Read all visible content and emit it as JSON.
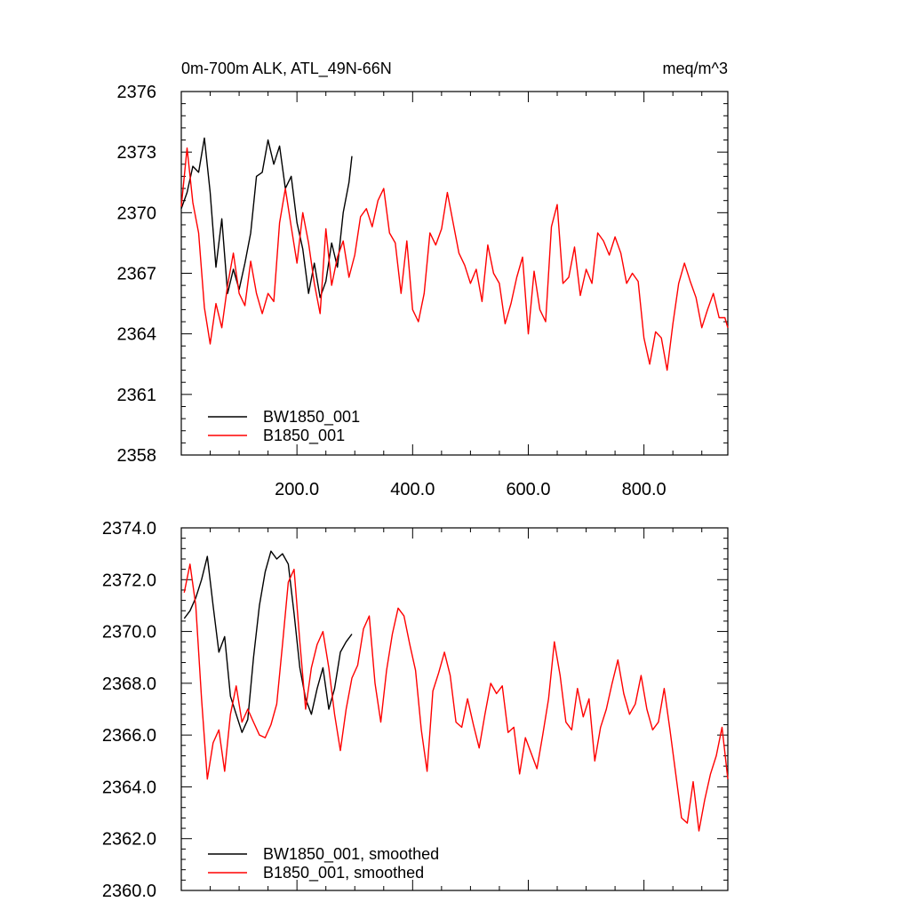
{
  "chart_data": [
    {
      "type": "line",
      "panel": "top",
      "title": "0m-700m ALK, ATL_49N-66N",
      "units_label": "meq/m^3",
      "xlim": [
        0,
        945
      ],
      "ylim": [
        2358,
        2376
      ],
      "x_ticks": [
        200,
        400,
        600,
        800
      ],
      "x_tick_labels": [
        "200.0",
        "400.0",
        "600.0",
        "800.0"
      ],
      "y_ticks": [
        2358,
        2361,
        2364,
        2367,
        2370,
        2373,
        2376
      ],
      "y_tick_labels": [
        "2358",
        "2361",
        "2364",
        "2367",
        "2370",
        "2373",
        "2376"
      ],
      "legend_position": "bottom-left",
      "series": [
        {
          "name": "BW1850_001",
          "color": "#000000",
          "x": [
            0,
            10,
            20,
            30,
            40,
            50,
            60,
            70,
            80,
            90,
            100,
            110,
            120,
            130,
            140,
            150,
            160,
            170,
            180,
            190,
            200,
            210,
            220,
            230,
            240,
            250,
            260,
            270,
            280,
            290,
            295
          ],
          "values": [
            2370.2,
            2371.0,
            2372.3,
            2372.0,
            2373.7,
            2371.0,
            2367.3,
            2369.7,
            2366.0,
            2367.2,
            2366.2,
            2367.5,
            2369.0,
            2371.8,
            2372.0,
            2373.6,
            2372.4,
            2373.3,
            2371.2,
            2371.8,
            2369.5,
            2368.2,
            2366.0,
            2367.5,
            2365.8,
            2366.6,
            2368.5,
            2367.3,
            2370.0,
            2371.5,
            2372.8
          ]
        },
        {
          "name": "B1850_001",
          "color": "#ff0000",
          "x": [
            0,
            10,
            20,
            30,
            40,
            50,
            60,
            70,
            80,
            90,
            100,
            110,
            120,
            130,
            140,
            150,
            160,
            170,
            180,
            190,
            200,
            210,
            220,
            230,
            240,
            250,
            260,
            270,
            280,
            290,
            300,
            310,
            320,
            330,
            340,
            350,
            360,
            370,
            380,
            390,
            400,
            410,
            420,
            430,
            440,
            450,
            460,
            470,
            480,
            490,
            500,
            510,
            520,
            530,
            540,
            550,
            560,
            570,
            580,
            590,
            600,
            610,
            620,
            630,
            640,
            650,
            660,
            670,
            680,
            690,
            700,
            710,
            720,
            730,
            740,
            750,
            760,
            770,
            780,
            790,
            800,
            810,
            820,
            830,
            840,
            850,
            860,
            870,
            880,
            890,
            900,
            910,
            920,
            930,
            940,
            945
          ],
          "values": [
            2370.3,
            2373.2,
            2370.5,
            2369.0,
            2365.3,
            2363.5,
            2365.5,
            2364.3,
            2366.4,
            2368.0,
            2366.0,
            2365.4,
            2367.6,
            2366.0,
            2365.0,
            2366.0,
            2365.6,
            2369.5,
            2371.2,
            2369.3,
            2367.5,
            2370.0,
            2368.5,
            2366.5,
            2365.0,
            2369.2,
            2366.4,
            2367.8,
            2368.6,
            2366.8,
            2367.9,
            2369.8,
            2370.2,
            2369.3,
            2370.6,
            2371.2,
            2369.0,
            2368.5,
            2366.0,
            2368.6,
            2365.2,
            2364.6,
            2366.0,
            2369.0,
            2368.4,
            2369.2,
            2371.0,
            2369.5,
            2368.0,
            2367.4,
            2366.5,
            2367.2,
            2365.6,
            2368.4,
            2367.0,
            2366.5,
            2364.5,
            2365.5,
            2366.8,
            2367.8,
            2364.0,
            2367.1,
            2365.2,
            2364.6,
            2369.3,
            2370.4,
            2366.5,
            2366.8,
            2368.3,
            2365.9,
            2367.2,
            2366.5,
            2369.0,
            2368.6,
            2367.9,
            2368.8,
            2368.0,
            2366.5,
            2367.0,
            2366.6,
            2363.8,
            2362.5,
            2364.1,
            2363.8,
            2362.2,
            2364.5,
            2366.5,
            2367.5,
            2366.6,
            2365.8,
            2364.3,
            2365.2,
            2366.0,
            2364.8,
            2364.8,
            2364.3
          ]
        }
      ]
    },
    {
      "type": "line",
      "panel": "bottom",
      "xlim": [
        0,
        945
      ],
      "ylim": [
        2360,
        2374
      ],
      "y_ticks": [
        2360,
        2362,
        2364,
        2366,
        2368,
        2370,
        2372,
        2374
      ],
      "y_tick_labels": [
        "2360.0",
        "2362.0",
        "2364.0",
        "2366.0",
        "2368.0",
        "2370.0",
        "2372.0",
        "2374.0"
      ],
      "x_ticks": [
        200,
        400,
        600,
        800
      ],
      "legend_position": "bottom-left",
      "series": [
        {
          "name": "BW1850_001, smoothed",
          "color": "#000000",
          "x": [
            5,
            15,
            25,
            35,
            45,
            55,
            65,
            75,
            85,
            95,
            105,
            115,
            125,
            135,
            145,
            155,
            165,
            175,
            185,
            195,
            205,
            215,
            225,
            235,
            245,
            255,
            265,
            275,
            285,
            295
          ],
          "values": [
            2370.5,
            2370.8,
            2371.3,
            2372.0,
            2372.9,
            2371.0,
            2369.2,
            2369.8,
            2367.5,
            2366.8,
            2366.1,
            2366.6,
            2369.0,
            2371.0,
            2372.3,
            2373.1,
            2372.8,
            2373.0,
            2372.6,
            2370.7,
            2368.6,
            2367.4,
            2366.8,
            2367.8,
            2368.6,
            2367.0,
            2367.8,
            2369.2,
            2369.6,
            2369.9
          ]
        },
        {
          "name": "B1850_001, smoothed",
          "color": "#ff0000",
          "x": [
            5,
            15,
            25,
            35,
            45,
            55,
            65,
            75,
            85,
            95,
            105,
            115,
            125,
            135,
            145,
            155,
            165,
            175,
            185,
            195,
            205,
            215,
            225,
            235,
            245,
            255,
            265,
            275,
            285,
            295,
            305,
            315,
            325,
            335,
            345,
            355,
            365,
            375,
            385,
            395,
            405,
            415,
            425,
            435,
            445,
            455,
            465,
            475,
            485,
            495,
            505,
            515,
            525,
            535,
            545,
            555,
            565,
            575,
            585,
            595,
            605,
            615,
            625,
            635,
            645,
            655,
            665,
            675,
            685,
            695,
            705,
            715,
            725,
            735,
            745,
            755,
            765,
            775,
            785,
            795,
            805,
            815,
            825,
            835,
            845,
            855,
            865,
            875,
            885,
            895,
            905,
            915,
            925,
            935,
            945
          ],
          "values": [
            2371.5,
            2372.6,
            2371.0,
            2367.4,
            2364.3,
            2365.7,
            2366.2,
            2364.6,
            2366.8,
            2367.9,
            2366.5,
            2367.0,
            2366.5,
            2366.0,
            2365.9,
            2366.4,
            2367.2,
            2369.5,
            2371.9,
            2372.4,
            2369.6,
            2367.0,
            2368.6,
            2369.5,
            2370.0,
            2368.6,
            2366.8,
            2365.4,
            2367.0,
            2368.2,
            2368.7,
            2370.1,
            2370.6,
            2368.0,
            2366.5,
            2368.5,
            2369.9,
            2370.9,
            2370.6,
            2369.5,
            2368.5,
            2366.2,
            2364.6,
            2367.7,
            2368.4,
            2369.2,
            2368.3,
            2366.5,
            2366.3,
            2367.4,
            2366.4,
            2365.5,
            2366.8,
            2368.0,
            2367.6,
            2367.9,
            2366.1,
            2366.3,
            2364.5,
            2365.9,
            2365.3,
            2364.7,
            2366.0,
            2367.4,
            2369.6,
            2368.3,
            2366.5,
            2366.2,
            2367.8,
            2366.7,
            2367.4,
            2365.0,
            2366.3,
            2367.0,
            2368.0,
            2368.9,
            2367.6,
            2366.8,
            2367.2,
            2368.3,
            2367.0,
            2366.2,
            2366.5,
            2367.8,
            2366.2,
            2364.5,
            2362.8,
            2362.6,
            2364.2,
            2362.3,
            2363.5,
            2364.5,
            2365.2,
            2366.3,
            2364.3
          ]
        }
      ]
    }
  ]
}
